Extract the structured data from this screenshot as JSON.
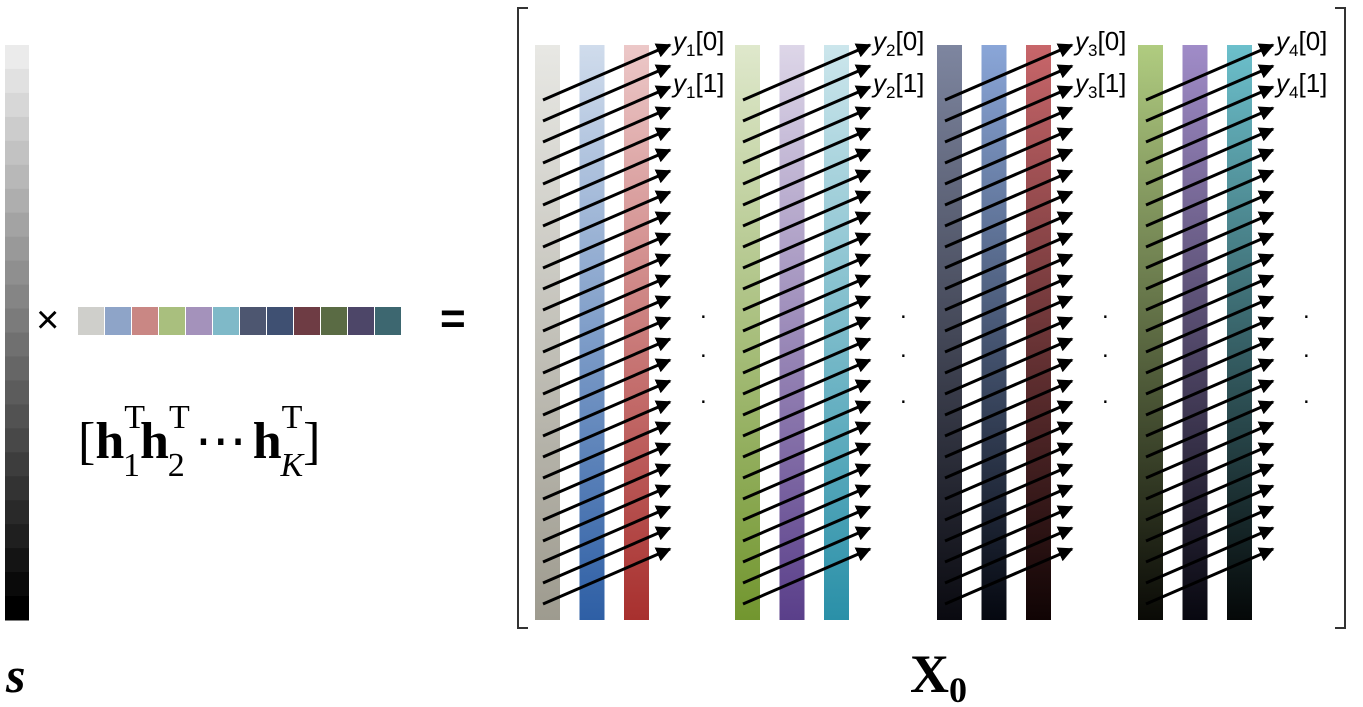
{
  "left_vector": {
    "label": "s"
  },
  "times": "×",
  "equals": "=",
  "row_vector": {
    "open": "[",
    "close": "]",
    "ellipsis": "⋯",
    "terms": [
      {
        "base": "h",
        "sub": "1",
        "sup": "T"
      },
      {
        "base": "h",
        "sub": "2",
        "sup": "T"
      },
      {
        "base": "h",
        "sub": "K",
        "sup": "T"
      }
    ]
  },
  "matrix": {
    "label": {
      "base": "X",
      "sub": "0"
    },
    "dot": ".",
    "outputs": [
      {
        "name": "y",
        "index": "1",
        "entries": [
          "[0]",
          "[1]"
        ]
      },
      {
        "name": "y",
        "index": "2",
        "entries": [
          "[0]",
          "[1]"
        ]
      },
      {
        "name": "y",
        "index": "3",
        "entries": [
          "[0]",
          "[1]"
        ]
      },
      {
        "name": "y",
        "index": "4",
        "entries": [
          "[0]",
          "[1]"
        ]
      }
    ]
  }
}
